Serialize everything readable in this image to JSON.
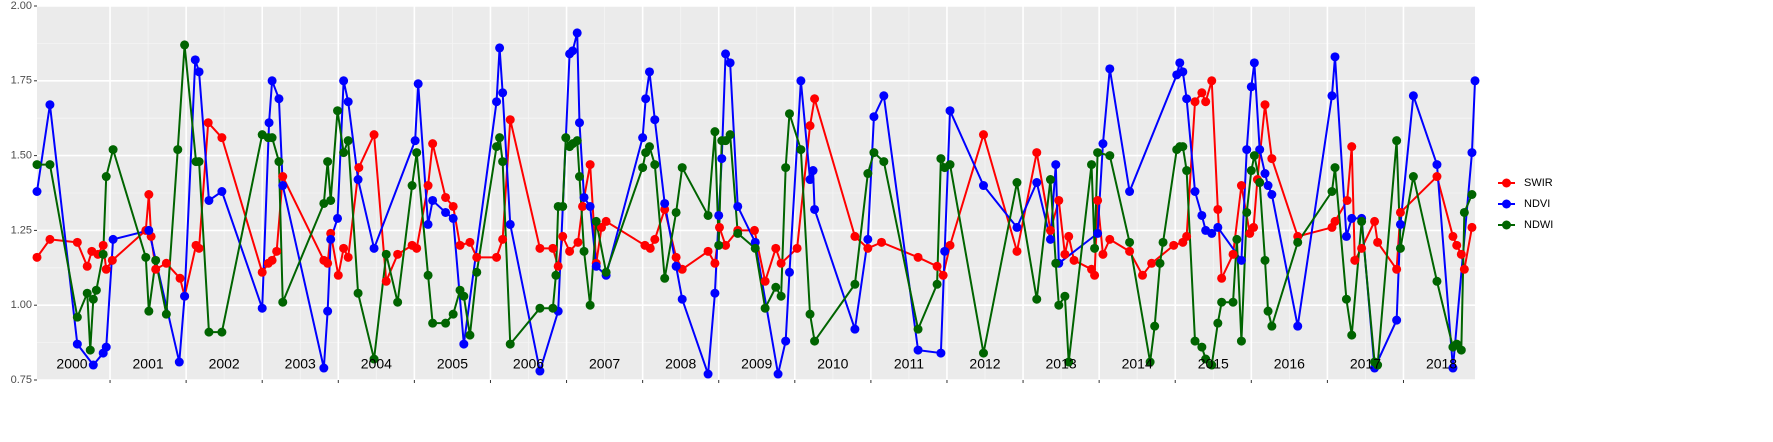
{
  "chart_data": {
    "type": "line",
    "xlim": [
      2000.04,
      2018.94
    ],
    "ylim": [
      0.75,
      2.0
    ],
    "xticks": [
      2001,
      2002,
      2003,
      2004,
      2005,
      2006,
      2007,
      2008,
      2009,
      2010,
      2011,
      2012,
      2013,
      2014,
      2015,
      2016,
      2017,
      2018
    ],
    "yticks": [
      {
        "value": 0.75,
        "label": "0.75"
      },
      {
        "value": 1.0,
        "label": "1.00"
      },
      {
        "value": 1.25,
        "label": "1.25"
      },
      {
        "value": 1.5,
        "label": "1.50"
      },
      {
        "value": 1.75,
        "label": "1.75"
      },
      {
        "value": 2.0,
        "label": "2.00"
      }
    ],
    "grid": true,
    "legend": "right",
    "annotations": [
      {
        "text": "2000",
        "x": 2000.5,
        "y": 0.8
      },
      {
        "text": "2001",
        "x": 2001.5,
        "y": 0.8
      },
      {
        "text": "2002",
        "x": 2002.5,
        "y": 0.8
      },
      {
        "text": "2003",
        "x": 2003.5,
        "y": 0.8
      },
      {
        "text": "2004",
        "x": 2004.5,
        "y": 0.8
      },
      {
        "text": "2005",
        "x": 2005.5,
        "y": 0.8
      },
      {
        "text": "2006",
        "x": 2006.5,
        "y": 0.8
      },
      {
        "text": "2007",
        "x": 2007.5,
        "y": 0.8
      },
      {
        "text": "2008",
        "x": 2008.5,
        "y": 0.8
      },
      {
        "text": "2009",
        "x": 2009.5,
        "y": 0.8
      },
      {
        "text": "2010",
        "x": 2010.5,
        "y": 0.8
      },
      {
        "text": "2011",
        "x": 2011.5,
        "y": 0.8
      },
      {
        "text": "2012",
        "x": 2012.5,
        "y": 0.8
      },
      {
        "text": "2013",
        "x": 2013.5,
        "y": 0.8
      },
      {
        "text": "2014",
        "x": 2014.5,
        "y": 0.8
      },
      {
        "text": "2015",
        "x": 2015.5,
        "y": 0.8
      },
      {
        "text": "2016",
        "x": 2016.5,
        "y": 0.8
      },
      {
        "text": "2017",
        "x": 2017.5,
        "y": 0.8
      },
      {
        "text": "2018",
        "x": 2018.5,
        "y": 0.8
      }
    ],
    "series": [
      {
        "name": "SWIR",
        "color": "#ff0000",
        "x": [
          2000.04,
          2000.21,
          2000.57,
          2000.7,
          2000.76,
          2000.84,
          2000.91,
          2000.95,
          2001.03,
          2001.47,
          2001.51,
          2001.54,
          2001.6,
          2001.74,
          2001.92,
          2001.98,
          2002.13,
          2002.17,
          2002.29,
          2002.47,
          2003.0,
          2003.08,
          2003.13,
          2003.19,
          2003.27,
          2003.81,
          2003.86,
          2003.9,
          2004.0,
          2004.07,
          2004.13,
          2004.27,
          2004.47,
          2004.63,
          2004.78,
          2004.97,
          2005.03,
          2005.18,
          2005.24,
          2005.41,
          2005.51,
          2005.6,
          2005.73,
          2005.82,
          2006.08,
          2006.16,
          2006.26,
          2006.65,
          2006.82,
          2006.89,
          2006.95,
          2007.04,
          2007.15,
          2007.21,
          2007.31,
          2007.39,
          2007.46,
          2007.52,
          2008.03,
          2008.1,
          2008.16,
          2008.29,
          2008.44,
          2008.52,
          2008.86,
          2008.95,
          2009.01,
          2009.09,
          2009.25,
          2009.47,
          2009.61,
          2009.75,
          2009.82,
          2010.03,
          2010.2,
          2010.26,
          2010.79,
          2010.96,
          2011.14,
          2011.62,
          2011.87,
          2011.95,
          2012.04,
          2012.48,
          2012.92,
          2013.18,
          2013.36,
          2013.47,
          2013.55,
          2013.6,
          2013.67,
          2013.9,
          2013.94,
          2013.98,
          2014.05,
          2014.14,
          2014.4,
          2014.57,
          2014.69,
          2014.98,
          2015.1,
          2015.15,
          2015.26,
          2015.35,
          2015.4,
          2015.48,
          2015.56,
          2015.61,
          2015.76,
          2015.87,
          2015.98,
          2016.03,
          2016.08,
          2016.18,
          2016.27,
          2016.61,
          2017.06,
          2017.1,
          2017.26,
          2017.32,
          2017.36,
          2017.45,
          2017.62,
          2017.66,
          2017.91,
          2017.96,
          2018.44,
          2018.65,
          2018.7,
          2018.76,
          2018.8,
          2018.9
        ],
        "values": [
          1.16,
          1.22,
          1.21,
          1.13,
          1.18,
          1.17,
          1.2,
          1.12,
          1.15,
          1.25,
          1.37,
          1.23,
          1.12,
          1.14,
          1.09,
          1.03,
          1.2,
          1.19,
          1.61,
          1.56,
          1.11,
          1.14,
          1.15,
          1.18,
          1.43,
          1.15,
          1.14,
          1.24,
          1.1,
          1.19,
          1.16,
          1.46,
          1.57,
          1.08,
          1.17,
          1.2,
          1.19,
          1.4,
          1.54,
          1.36,
          1.33,
          1.2,
          1.21,
          1.16,
          1.16,
          1.22,
          1.62,
          1.19,
          1.19,
          1.13,
          1.23,
          1.18,
          1.21,
          1.33,
          1.47,
          1.14,
          1.26,
          1.28,
          1.2,
          1.19,
          1.22,
          1.32,
          1.16,
          1.12,
          1.18,
          1.14,
          1.26,
          1.2,
          1.25,
          1.25,
          1.08,
          1.19,
          1.14,
          1.19,
          1.6,
          1.69,
          1.23,
          1.19,
          1.21,
          1.16,
          1.13,
          1.1,
          1.2,
          1.57,
          1.18,
          1.51,
          1.25,
          1.35,
          1.17,
          1.23,
          1.15,
          1.12,
          1.1,
          1.35,
          1.17,
          1.22,
          1.18,
          1.1,
          1.14,
          1.2,
          1.21,
          1.23,
          1.68,
          1.71,
          1.68,
          1.75,
          1.32,
          1.09,
          1.17,
          1.4,
          1.24,
          1.26,
          1.42,
          1.67,
          1.49,
          1.23,
          1.26,
          1.28,
          1.35,
          1.53,
          1.15,
          1.19,
          1.28,
          1.21,
          1.12,
          1.31,
          1.43,
          1.23,
          1.2,
          1.17,
          1.12,
          1.26
        ]
      },
      {
        "name": "NDVI",
        "color": "#0000ff",
        "x": [
          2000.04,
          2000.21,
          2000.57,
          2000.78,
          2000.91,
          2000.95,
          2001.04,
          2001.51,
          2001.91,
          2001.98,
          2002.12,
          2002.17,
          2002.3,
          2002.47,
          2003.0,
          2003.09,
          2003.13,
          2003.22,
          2003.27,
          2003.81,
          2003.86,
          2003.9,
          2003.99,
          2004.07,
          2004.13,
          2004.26,
          2004.47,
          2005.01,
          2005.05,
          2005.18,
          2005.24,
          2005.41,
          2005.51,
          2005.65,
          2006.08,
          2006.12,
          2006.16,
          2006.26,
          2006.65,
          2006.89,
          2007.04,
          2007.08,
          2007.14,
          2007.17,
          2007.23,
          2007.31,
          2007.39,
          2007.52,
          2008.0,
          2008.04,
          2008.09,
          2008.16,
          2008.29,
          2008.44,
          2008.52,
          2008.86,
          2008.95,
          2009.0,
          2009.04,
          2009.09,
          2009.15,
          2009.25,
          2009.48,
          2009.78,
          2009.88,
          2009.93,
          2010.08,
          2010.2,
          2010.24,
          2010.26,
          2010.79,
          2010.96,
          2011.04,
          2011.17,
          2011.62,
          2011.92,
          2011.97,
          2012.04,
          2012.48,
          2012.92,
          2013.18,
          2013.36,
          2013.43,
          2013.47,
          2013.98,
          2014.05,
          2014.14,
          2014.4,
          2015.02,
          2015.06,
          2015.1,
          2015.15,
          2015.26,
          2015.35,
          2015.4,
          2015.48,
          2015.56,
          2015.87,
          2015.94,
          2016.0,
          2016.04,
          2016.11,
          2016.18,
          2016.22,
          2016.27,
          2016.61,
          2017.06,
          2017.1,
          2017.25,
          2017.32,
          2017.45,
          2017.62,
          2017.91,
          2017.96,
          2018.13,
          2018.44,
          2018.65,
          2018.9,
          2018.94
        ],
        "values": [
          1.38,
          1.67,
          0.87,
          0.8,
          0.84,
          0.86,
          1.22,
          1.25,
          0.81,
          1.03,
          1.82,
          1.78,
          1.35,
          1.38,
          0.99,
          1.61,
          1.75,
          1.69,
          1.4,
          0.79,
          0.98,
          1.22,
          1.29,
          1.75,
          1.68,
          1.42,
          1.19,
          1.55,
          1.74,
          1.27,
          1.35,
          1.31,
          1.29,
          0.87,
          1.68,
          1.86,
          1.71,
          1.27,
          0.78,
          0.98,
          1.84,
          1.85,
          1.91,
          1.61,
          1.36,
          1.33,
          1.13,
          1.1,
          1.56,
          1.69,
          1.78,
          1.62,
          1.34,
          1.13,
          1.02,
          0.77,
          1.04,
          1.3,
          1.49,
          1.84,
          1.81,
          1.33,
          1.21,
          0.77,
          0.88,
          1.11,
          1.75,
          1.42,
          1.45,
          1.32,
          0.92,
          1.22,
          1.63,
          1.7,
          0.85,
          0.84,
          1.18,
          1.65,
          1.4,
          1.26,
          1.41,
          1.22,
          1.47,
          1.14,
          1.24,
          1.54,
          1.79,
          1.38,
          1.77,
          1.81,
          1.78,
          1.69,
          1.38,
          1.3,
          1.25,
          1.24,
          1.26,
          1.15,
          1.52,
          1.73,
          1.81,
          1.52,
          1.44,
          1.4,
          1.37,
          0.93,
          1.7,
          1.83,
          1.23,
          1.29,
          1.29,
          0.79,
          0.95,
          1.27,
          1.7,
          1.47,
          0.79,
          1.51,
          1.75
        ]
      },
      {
        "name": "NDWI",
        "color": "#006400",
        "x": [
          2000.04,
          2000.21,
          2000.57,
          2000.7,
          2000.74,
          2000.78,
          2000.82,
          2000.91,
          2000.95,
          2001.04,
          2001.47,
          2001.51,
          2001.6,
          2001.74,
          2001.89,
          2001.98,
          2002.13,
          2002.17,
          2002.3,
          2002.47,
          2003.0,
          2003.08,
          2003.13,
          2003.22,
          2003.27,
          2003.81,
          2003.86,
          2003.9,
          2003.99,
          2004.07,
          2004.13,
          2004.26,
          2004.47,
          2004.63,
          2004.78,
          2004.97,
          2005.03,
          2005.18,
          2005.24,
          2005.41,
          2005.51,
          2005.6,
          2005.65,
          2005.73,
          2005.82,
          2006.08,
          2006.12,
          2006.16,
          2006.26,
          2006.65,
          2006.82,
          2006.86,
          2006.89,
          2006.95,
          2006.99,
          2007.04,
          2007.08,
          2007.14,
          2007.17,
          2007.23,
          2007.31,
          2007.39,
          2007.52,
          2008.0,
          2008.04,
          2008.09,
          2008.16,
          2008.29,
          2008.44,
          2008.52,
          2008.86,
          2008.95,
          2009.0,
          2009.04,
          2009.09,
          2009.15,
          2009.25,
          2009.48,
          2009.61,
          2009.75,
          2009.82,
          2009.88,
          2009.93,
          2010.08,
          2010.2,
          2010.26,
          2010.79,
          2010.96,
          2011.04,
          2011.17,
          2011.62,
          2011.87,
          2011.92,
          2011.97,
          2012.04,
          2012.48,
          2012.92,
          2013.18,
          2013.36,
          2013.43,
          2013.47,
          2013.55,
          2013.6,
          2013.9,
          2013.94,
          2013.98,
          2014.14,
          2014.4,
          2014.67,
          2014.73,
          2014.8,
          2014.84,
          2015.02,
          2015.06,
          2015.1,
          2015.15,
          2015.26,
          2015.35,
          2015.4,
          2015.48,
          2015.56,
          2015.61,
          2015.76,
          2015.81,
          2015.87,
          2015.94,
          2016.0,
          2016.04,
          2016.11,
          2016.18,
          2016.22,
          2016.27,
          2016.61,
          2017.06,
          2017.1,
          2017.25,
          2017.32,
          2017.45,
          2017.62,
          2017.66,
          2017.91,
          2017.96,
          2018.13,
          2018.44,
          2018.65,
          2018.7,
          2018.76,
          2018.8,
          2018.9
        ],
        "values": [
          1.47,
          1.47,
          0.96,
          1.04,
          0.85,
          1.02,
          1.05,
          1.17,
          1.43,
          1.52,
          1.16,
          0.98,
          1.15,
          0.97,
          1.52,
          1.87,
          1.48,
          1.48,
          0.91,
          0.91,
          1.57,
          1.56,
          1.56,
          1.48,
          1.01,
          1.34,
          1.48,
          1.35,
          1.65,
          1.51,
          1.55,
          1.04,
          0.82,
          1.17,
          1.01,
          1.4,
          1.51,
          1.1,
          0.94,
          0.94,
          0.97,
          1.05,
          1.03,
          0.9,
          1.11,
          1.53,
          1.56,
          1.48,
          0.87,
          0.99,
          0.99,
          1.1,
          1.33,
          1.33,
          1.56,
          1.53,
          1.54,
          1.55,
          1.43,
          1.18,
          1.0,
          1.28,
          1.11,
          1.46,
          1.51,
          1.53,
          1.47,
          1.09,
          1.31,
          1.46,
          1.3,
          1.58,
          1.2,
          1.55,
          1.55,
          1.57,
          1.24,
          1.19,
          0.99,
          1.06,
          1.03,
          1.46,
          1.64,
          1.52,
          0.97,
          0.88,
          1.07,
          1.44,
          1.51,
          1.48,
          0.92,
          1.07,
          1.49,
          1.46,
          1.47,
          0.84,
          1.41,
          1.02,
          1.42,
          1.14,
          1.0,
          1.03,
          0.81,
          1.47,
          1.19,
          1.51,
          1.5,
          1.21,
          0.81,
          0.93,
          1.14,
          1.21,
          1.52,
          1.53,
          1.53,
          1.45,
          0.88,
          0.86,
          0.82,
          0.8,
          0.94,
          1.01,
          1.01,
          1.22,
          0.88,
          1.31,
          1.45,
          1.5,
          1.41,
          1.15,
          0.98,
          0.93,
          1.21,
          1.38,
          1.46,
          1.02,
          0.9,
          1.28,
          0.81,
          0.8,
          1.55,
          1.19,
          1.43,
          1.08,
          0.86,
          0.87,
          0.85,
          1.31,
          1.37
        ]
      }
    ]
  }
}
